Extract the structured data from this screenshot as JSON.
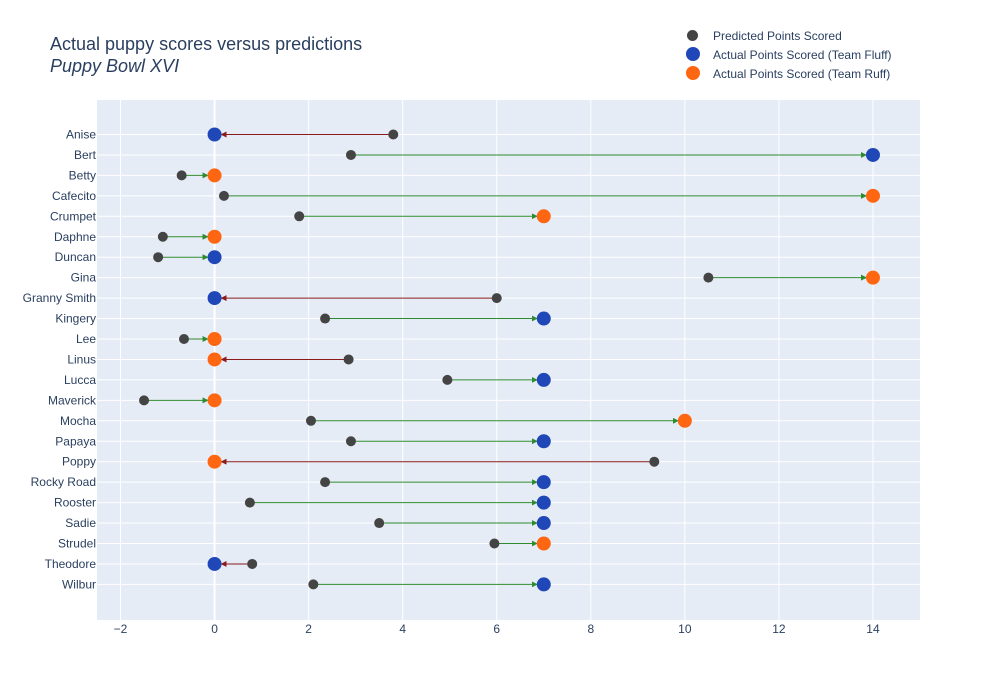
{
  "title": "Actual puppy scores versus predictions",
  "subtitle": "Puppy Bowl XVI",
  "legend": [
    {
      "label": "Predicted Points Scored",
      "color": "#444444"
    },
    {
      "label": "Actual Points Scored (Team Fluff)",
      "color": "#2047b8"
    },
    {
      "label": "Actual Points Scored (Team Ruff)",
      "color": "#ff6611"
    }
  ],
  "colors": {
    "plot_bg": "#e5ecf6",
    "grid": "#ffffff",
    "over_arrow": "#2e8b2e",
    "under_arrow": "#8b1a1a",
    "predicted": "#444444",
    "fluff": "#2047b8",
    "ruff": "#ff6611"
  },
  "chart_data": {
    "type": "scatter",
    "title": "Actual puppy scores versus predictions",
    "subtitle": "Puppy Bowl XVI",
    "xlim": [
      -2.5,
      15
    ],
    "x_ticks": [
      -2,
      0,
      2,
      4,
      6,
      8,
      10,
      12,
      14
    ],
    "grid": true,
    "legend_position": "top-right",
    "rows": [
      {
        "name": "Anise",
        "predicted": 3.8,
        "actual": 0,
        "team": "Fluff"
      },
      {
        "name": "Bert",
        "predicted": 2.9,
        "actual": 14,
        "team": "Fluff"
      },
      {
        "name": "Betty",
        "predicted": -0.7,
        "actual": 0,
        "team": "Ruff"
      },
      {
        "name": "Cafecito",
        "predicted": 0.2,
        "actual": 14,
        "team": "Ruff"
      },
      {
        "name": "Crumpet",
        "predicted": 1.8,
        "actual": 7,
        "team": "Ruff"
      },
      {
        "name": "Daphne",
        "predicted": -1.1,
        "actual": 0,
        "team": "Ruff"
      },
      {
        "name": "Duncan",
        "predicted": -1.2,
        "actual": 0,
        "team": "Fluff"
      },
      {
        "name": "Gina",
        "predicted": 10.5,
        "actual": 14,
        "team": "Ruff"
      },
      {
        "name": "Granny Smith",
        "predicted": 6.0,
        "actual": 0,
        "team": "Fluff"
      },
      {
        "name": "Kingery",
        "predicted": 2.35,
        "actual": 7,
        "team": "Fluff"
      },
      {
        "name": "Lee",
        "predicted": -0.65,
        "actual": 0,
        "team": "Ruff"
      },
      {
        "name": "Linus",
        "predicted": 2.85,
        "actual": 0,
        "team": "Ruff"
      },
      {
        "name": "Lucca",
        "predicted": 4.95,
        "actual": 7,
        "team": "Fluff"
      },
      {
        "name": "Maverick",
        "predicted": -1.5,
        "actual": 0,
        "team": "Ruff"
      },
      {
        "name": "Mocha",
        "predicted": 2.05,
        "actual": 10,
        "team": "Ruff"
      },
      {
        "name": "Papaya",
        "predicted": 2.9,
        "actual": 7,
        "team": "Fluff"
      },
      {
        "name": "Poppy",
        "predicted": 9.35,
        "actual": 0,
        "team": "Ruff"
      },
      {
        "name": "Rocky Road",
        "predicted": 2.35,
        "actual": 7,
        "team": "Fluff"
      },
      {
        "name": "Rooster",
        "predicted": 0.75,
        "actual": 7,
        "team": "Fluff"
      },
      {
        "name": "Sadie",
        "predicted": 3.5,
        "actual": 7,
        "team": "Fluff"
      },
      {
        "name": "Strudel",
        "predicted": 5.95,
        "actual": 7,
        "team": "Ruff"
      },
      {
        "name": "Theodore",
        "predicted": 0.8,
        "actual": 0,
        "team": "Fluff"
      },
      {
        "name": "Wilbur",
        "predicted": 2.1,
        "actual": 7,
        "team": "Fluff"
      }
    ]
  }
}
